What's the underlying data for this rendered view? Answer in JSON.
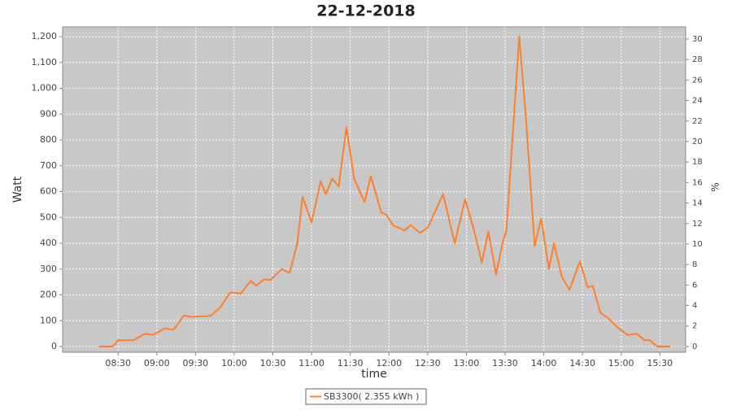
{
  "chart_data": {
    "type": "line",
    "title": "22-12-2018",
    "x_label": "time",
    "y_label": "Watt",
    "y2_label": "%",
    "x": [
      "08:15",
      "08:25",
      "08:28",
      "08:30",
      "08:34",
      "08:42",
      "08:51",
      "08:57",
      "09:06",
      "09:13",
      "09:21",
      "09:27",
      "09:39",
      "09:42",
      "09:49",
      "09:57",
      "10:05",
      "10:13",
      "10:17",
      "10:23",
      "10:28",
      "10:37",
      "10:43",
      "10:49",
      "10:53",
      "11:00",
      "11:07",
      "11:11",
      "11:16",
      "11:21",
      "11:27",
      "11:33",
      "11:41",
      "11:46",
      "11:54",
      "11:58",
      "12:03",
      "12:12",
      "12:17",
      "12:24",
      "12:30",
      "12:42",
      "12:51",
      "12:59",
      "13:06",
      "13:12",
      "13:17",
      "13:23",
      "13:28",
      "13:31",
      "13:41",
      "13:46",
      "13:53",
      "13:58",
      "14:04",
      "14:08",
      "14:14",
      "14:20",
      "14:28",
      "14:34",
      "14:38",
      "14:44",
      "14:50",
      "14:57",
      "15:05",
      "15:12",
      "15:18",
      "15:22",
      "15:28",
      "15:38"
    ],
    "series": [
      {
        "name": "SB3300( 2.355 kWh )",
        "color": "#ff7f2a",
        "values": [
          0,
          0,
          10,
          25,
          25,
          25,
          50,
          45,
          70,
          65,
          120,
          115,
          118,
          120,
          150,
          210,
          205,
          255,
          235,
          260,
          258,
          300,
          285,
          400,
          580,
          480,
          640,
          590,
          650,
          620,
          850,
          650,
          560,
          660,
          520,
          510,
          470,
          450,
          470,
          440,
          460,
          590,
          400,
          570,
          450,
          325,
          445,
          280,
          400,
          450,
          1200,
          900,
          390,
          495,
          300,
          400,
          270,
          220,
          330,
          230,
          235,
          130,
          110,
          75,
          45,
          50,
          25,
          25,
          0,
          0
        ]
      }
    ],
    "xlim": [
      "07:47",
      "15:50"
    ],
    "xticks": [
      "08:30",
      "09:00",
      "09:30",
      "10:00",
      "10:30",
      "11:00",
      "11:30",
      "12:00",
      "12:30",
      "13:00",
      "13:30",
      "14:00",
      "14:30",
      "15:00",
      "15:30"
    ],
    "ylim": [
      -22,
      1238
    ],
    "yticks": [
      0,
      100,
      200,
      300,
      400,
      500,
      600,
      700,
      800,
      900,
      {
        "value": 1000,
        "label": "1,000"
      },
      {
        "value": 1100,
        "label": "1,100"
      },
      {
        "value": 1200,
        "label": "1,200"
      }
    ],
    "y2lim": [
      -0.56,
      31.19
    ],
    "y2ticks": [
      0,
      2,
      4,
      6,
      8,
      10,
      12,
      14,
      16,
      18,
      20,
      22,
      24,
      26,
      28,
      30
    ],
    "grid": true
  }
}
